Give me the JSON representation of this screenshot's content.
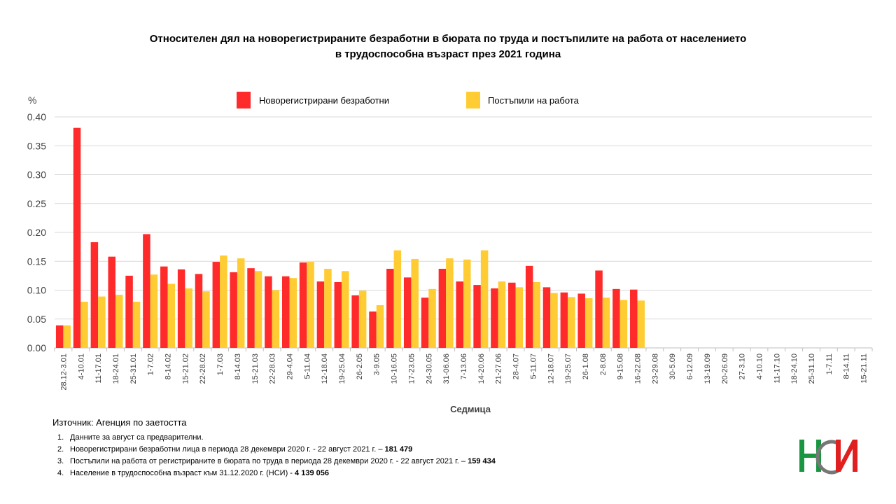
{
  "title": {
    "line1": "Относителен дял на новорегистрираните безработни в бюрата по труда и постъпилите на работа от населението",
    "line2": "в трудоспособна възраст през 2021 година"
  },
  "colors": {
    "series1": "#ff2a2a",
    "series2": "#ffcc33",
    "grid": "#d9d9d9",
    "axis": "#bfbfbf"
  },
  "chart_data": {
    "type": "bar",
    "ylabel": "%",
    "xlabel": "Седмица",
    "ylim": [
      0,
      0.4
    ],
    "yticks": [
      "0.00",
      "0.05",
      "0.10",
      "0.15",
      "0.20",
      "0.25",
      "0.30",
      "0.35",
      "0.40"
    ],
    "grid": true,
    "legend_position": "top",
    "categories": [
      "28.12-3.01",
      "4-10.01",
      "11-17.01",
      "18-24.01",
      "25-31.01",
      "1-7.02",
      "8-14.02",
      "15-21.02",
      "22-28.02",
      "1-7.03",
      "8-14.03",
      "15-21.03",
      "22-28.03",
      "29-4.04",
      "5-11.04",
      "12-18.04",
      "19-25.04",
      "26-2.05",
      "3-9.05",
      "10-16.05",
      "17-23.05",
      "24-30.05",
      "31-06.06",
      "7-13.06",
      "14-20.06",
      "21-27.06",
      "28-4.07",
      "5-11.07",
      "12-18.07",
      "19-25.07",
      "26-1.08",
      "2-8.08",
      "9-15.08",
      "16-22.08",
      "23-29.08",
      "30-5.09",
      "6-12.09",
      "13-19.09",
      "20-26.09",
      "27-3.10",
      "4-10.10",
      "11-17.10",
      "18-24.10",
      "25-31.10",
      "1-7.11",
      "8-14.11",
      "15-21.11"
    ],
    "series": [
      {
        "name": "Новорегистрирани безработни",
        "values": [
          0.039,
          0.381,
          0.183,
          0.158,
          0.125,
          0.197,
          0.141,
          0.136,
          0.128,
          0.149,
          0.131,
          0.138,
          0.124,
          0.124,
          0.148,
          0.115,
          0.114,
          0.091,
          0.063,
          0.137,
          0.122,
          0.087,
          0.137,
          0.115,
          0.109,
          0.103,
          0.113,
          0.142,
          0.105,
          0.096,
          0.094,
          0.134,
          0.102,
          0.101,
          null,
          null,
          null,
          null,
          null,
          null,
          null,
          null,
          null,
          null,
          null,
          null,
          null
        ]
      },
      {
        "name": "Постъпили на работа",
        "values": [
          0.039,
          0.08,
          0.089,
          0.092,
          0.08,
          0.127,
          0.111,
          0.103,
          0.098,
          0.16,
          0.155,
          0.133,
          0.1,
          0.121,
          0.149,
          0.137,
          0.133,
          0.099,
          0.074,
          0.169,
          0.154,
          0.102,
          0.155,
          0.153,
          0.169,
          0.115,
          0.105,
          0.114,
          0.095,
          0.088,
          0.086,
          0.087,
          0.083,
          0.082,
          null,
          null,
          null,
          null,
          null,
          null,
          null,
          null,
          null,
          null,
          null,
          null,
          null
        ]
      }
    ]
  },
  "source": "Източник: Агенция по заетостта",
  "notes": [
    {
      "num": "1.",
      "text": "Данните за август са предварителни.",
      "value": ""
    },
    {
      "num": "2.",
      "text": "Новорегистрирани безработни лица в периода 28 декември 2020 г. - 22 август 2021 г. –",
      "value": "181 479"
    },
    {
      "num": "3.",
      "text": "Постъпили на работа от регистрираните в бюрата по труда в периода 28 декември 2020 г. - 22 август 2021 г. –",
      "value": "159 434"
    },
    {
      "num": "4.",
      "text": "Население в трудоспособна възраст към 31.12.2020 г. (НСИ) -",
      "value": "4 139 056"
    }
  ],
  "logo": {
    "text": "НСИ",
    "icon": "nsi-logo-icon"
  }
}
